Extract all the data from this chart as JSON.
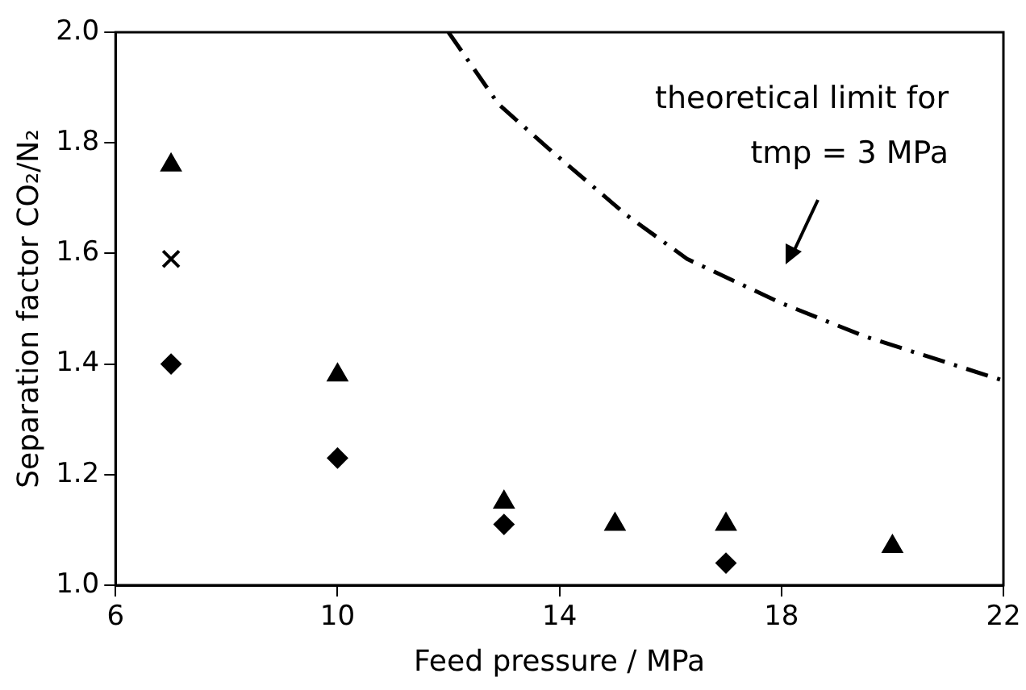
{
  "chart_data": {
    "type": "scatter",
    "xlabel": "Feed pressure / MPa",
    "ylabel": "Separation factor CO₂/N₂",
    "xlim": [
      6,
      22
    ],
    "xticks": [
      6,
      10,
      14,
      18,
      22
    ],
    "ylim": [
      1.0,
      2.0
    ],
    "yticks": [
      {
        "value": 1.0,
        "label": "1.0"
      },
      {
        "value": 1.2,
        "label": "1.2"
      },
      {
        "value": 1.4,
        "label": "1.4"
      },
      {
        "value": 1.6,
        "label": "1.6"
      },
      {
        "value": 1.8,
        "label": "1.8"
      },
      {
        "value": 2.0,
        "label": "2.0"
      }
    ],
    "grid": false,
    "legend": false,
    "series": [
      {
        "color": "#000000",
        "marker": "triangle",
        "x": [
          7,
          10,
          13,
          15,
          17,
          20
        ],
        "values": [
          1.76,
          1.38,
          1.15,
          1.11,
          1.11,
          1.07
        ]
      },
      {
        "color": "#000000",
        "marker": "cross",
        "x": [
          7
        ],
        "values": [
          1.59
        ]
      },
      {
        "color": "#000000",
        "marker": "diamond",
        "x": [
          7,
          10,
          13,
          17
        ],
        "values": [
          1.4,
          1.23,
          1.11,
          1.04
        ]
      },
      {
        "type": "line",
        "color": "#000000",
        "marker": "none",
        "line_style": "dashdot",
        "x": [
          12,
          12.9,
          13.8,
          15.2,
          16.3,
          18,
          19.5,
          22
        ],
        "values": [
          2.0,
          1.87,
          1.79,
          1.67,
          1.59,
          1.51,
          1.45,
          1.37
        ]
      }
    ],
    "annotations": [
      "theoretical limit for\ntmp = 3 MPa"
    ]
  }
}
